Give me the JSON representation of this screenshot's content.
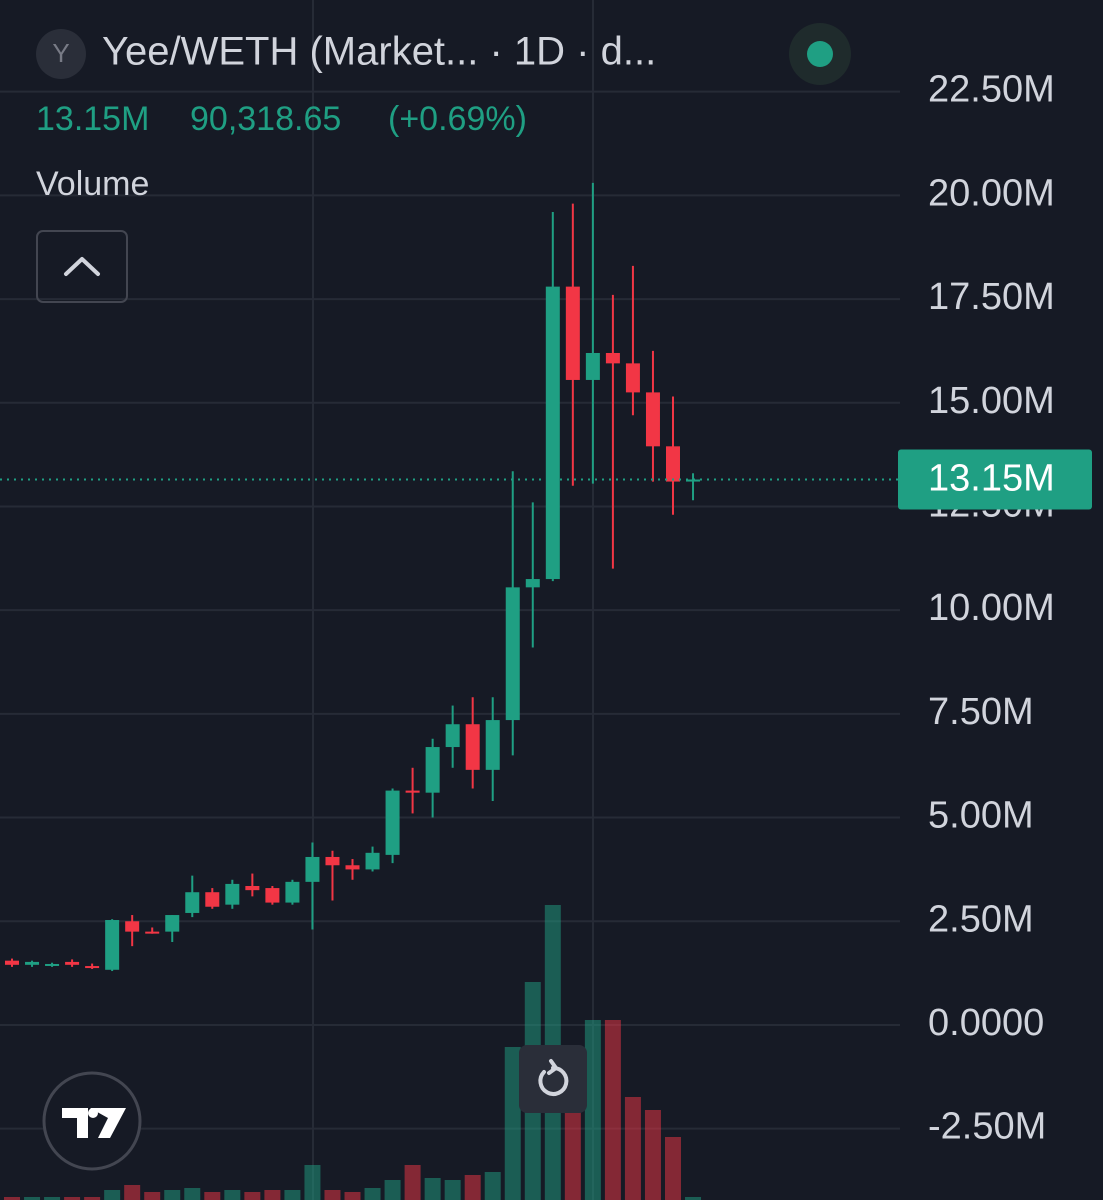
{
  "chart_data": {
    "type": "candlestick",
    "symbol_icon": "Y",
    "title": "Yee/WETH (Market...  · 1D · d...",
    "legend": {
      "price": "13.15M",
      "change": "90,318.65",
      "change_pct": "(+0.69%)"
    },
    "volume_label": "Volume",
    "up_color": "#1f9f83",
    "down_color": "#f23645",
    "open": [
      1550000,
      1450000,
      1450000,
      1520000,
      1420000,
      1330000,
      2500000,
      2250000,
      2250000,
      2700000,
      3200000,
      2900000,
      3350000,
      3300000,
      2950000,
      3450000,
      4050000,
      3850000,
      3750000,
      4100000,
      5650000,
      5600000,
      6700000,
      7250000,
      6150000,
      7350000,
      10550000,
      10750000,
      17800000,
      15550000,
      16200000,
      15950000,
      15250000,
      13950000,
      13100000
    ],
    "close": [
      1450000,
      1520000,
      1470000,
      1450000,
      1380000,
      2530000,
      2250000,
      2220000,
      2650000,
      3200000,
      2850000,
      3400000,
      3250000,
      2950000,
      3450000,
      4050000,
      3850000,
      3750000,
      4150000,
      5650000,
      5600000,
      6700000,
      7250000,
      6150000,
      7350000,
      10550000,
      10750000,
      17800000,
      15550000,
      16200000,
      15950000,
      15250000,
      13950000,
      13100000,
      13150000
    ],
    "high": [
      1600000,
      1550000,
      1500000,
      1580000,
      1480000,
      2550000,
      2650000,
      2350000,
      2650000,
      3600000,
      3300000,
      3500000,
      3650000,
      3350000,
      3500000,
      4400000,
      4200000,
      4000000,
      4300000,
      5700000,
      6200000,
      6900000,
      7700000,
      7900000,
      7900000,
      13350000,
      12600000,
      19600000,
      19800000,
      20300000,
      17600000,
      18300000,
      16250000,
      15150000,
      13300000
    ],
    "low": [
      1400000,
      1400000,
      1400000,
      1400000,
      1350000,
      1300000,
      1900000,
      2200000,
      2000000,
      2600000,
      2800000,
      2800000,
      3100000,
      2900000,
      2900000,
      2300000,
      3000000,
      3500000,
      3700000,
      3900000,
      5100000,
      5000000,
      6200000,
      5700000,
      5400000,
      6500000,
      9100000,
      10700000,
      13000000,
      13050000,
      11000000,
      14700000,
      13100000,
      12300000,
      12650000
    ],
    "volume": [
      3,
      3,
      3,
      3,
      3,
      10,
      15,
      8,
      10,
      12,
      8,
      10,
      8,
      10,
      10,
      35,
      10,
      8,
      12,
      20,
      35,
      22,
      20,
      25,
      28,
      153,
      218,
      295,
      90,
      180,
      180,
      103,
      90,
      63,
      3
    ],
    "ylim": [
      -4220000,
      24710000
    ],
    "yticks": [
      {
        "value": 22500000,
        "label": "22.50M"
      },
      {
        "value": 20000000,
        "label": "20.00M"
      },
      {
        "value": 17500000,
        "label": "17.50M"
      },
      {
        "value": 15000000,
        "label": "15.00M"
      },
      {
        "value": 12500000,
        "label": "12.50M"
      },
      {
        "value": 10000000,
        "label": "10.00M"
      },
      {
        "value": 7500000,
        "label": "7.50M"
      },
      {
        "value": 5000000,
        "label": "5.00M"
      },
      {
        "value": 2500000,
        "label": "2.50M"
      },
      {
        "value": 0,
        "label": "0.0000"
      },
      {
        "value": -2500000,
        "label": "-2.50M"
      }
    ],
    "last_price": {
      "value": 13150000,
      "label": "13.15M"
    },
    "grid": true
  }
}
